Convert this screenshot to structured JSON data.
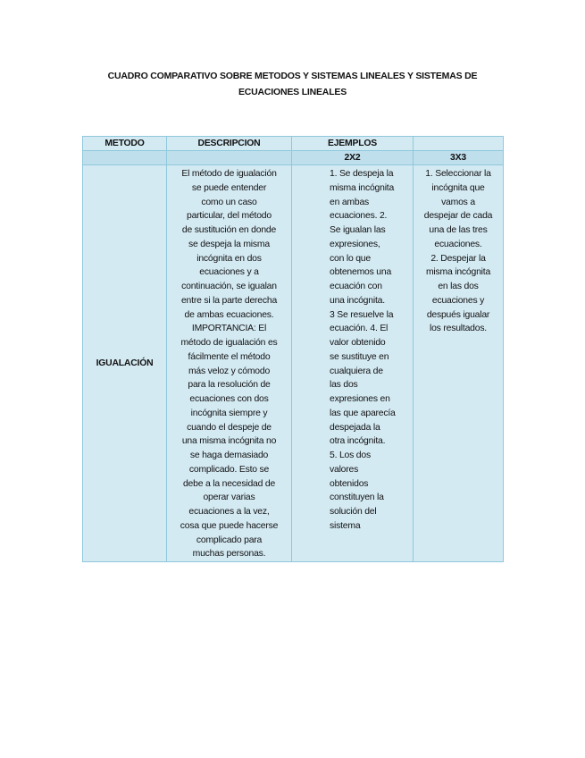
{
  "title": [
    "CUADRO COMPARATIVO SOBRE METODOS Y SISTEMAS LINEALES Y SISTEMAS DE",
    "ECUACIONES LINEALES"
  ],
  "table": {
    "headers": [
      "METODO",
      "DESCRIPCION",
      "EJEMPLOS",
      ""
    ],
    "subheaders": [
      "",
      "",
      "2X2",
      "3X3"
    ],
    "row": {
      "method": "IGUALACIÓN",
      "description": [
        "El método de igualación",
        "se puede entender",
        "como un caso",
        "particular, del método",
        "de sustitución en donde",
        "se despeja la misma",
        "incógnita en dos",
        "ecuaciones y a",
        "continuación, se igualan",
        "entre si la parte derecha",
        "de ambas ecuaciones.",
        "IMPORTANCIA: El",
        "método de igualación es",
        "fácilmente el método",
        "más veloz y cómodo",
        "para la resolución de",
        "ecuaciones con dos",
        "incógnita siempre y",
        "cuando el despeje de",
        "una misma incógnita no",
        "se haga demasiado",
        "complicado. Esto se",
        "debe a la necesidad de",
        "operar varias",
        "ecuaciones a la vez,",
        "cosa que puede hacerse",
        "complicado para",
        "muchas personas."
      ],
      "example_2x2": [
        "1. Se despeja la",
        "misma incógnita",
        "en ambas",
        "ecuaciones. 2.",
        "Se igualan las",
        "expresiones,",
        "con lo que",
        "obtenemos una",
        "ecuación con",
        "una incógnita.",
        "3 Se resuelve la",
        "ecuación. 4. El",
        "valor obtenido",
        "se sustituye en",
        "cualquiera de",
        "las dos",
        "expresiones en",
        "las que aparecía",
        "despejada la",
        "otra incógnita.",
        " 5. Los dos",
        "valores",
        "obtenidos",
        "constituyen la",
        "solución del",
        "sistema"
      ],
      "example_3x3": [
        "1. Seleccionar la",
        "incógnita que",
        "vamos a",
        "despejar de cada",
        "una de las tres",
        "ecuaciones.",
        "2. Despejar la",
        "misma incógnita",
        "en las dos",
        "ecuaciones y",
        "después igualar",
        "los resultados."
      ]
    }
  }
}
